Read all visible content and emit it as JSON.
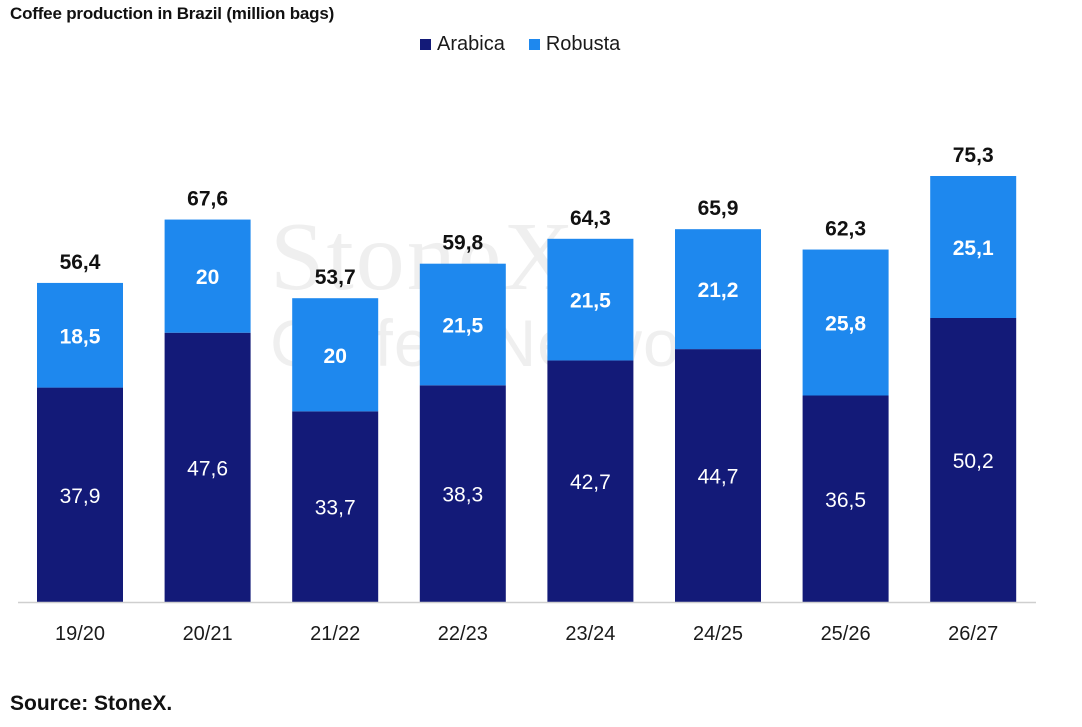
{
  "title": "Coffee production in Brazil (million bags)",
  "source": "Source: StoneX.",
  "watermark": {
    "line1": "StoneX",
    "line2": "Coffee Network"
  },
  "colors": {
    "arabica": "#131a78",
    "robusta": "#1e88ee",
    "axis": "#cfcfcf"
  },
  "chart_data": {
    "type": "bar",
    "stacked": true,
    "title": "Coffee production in Brazil (million bags)",
    "categories": [
      "19/20",
      "20/21",
      "21/22",
      "22/23",
      "23/24",
      "24/25",
      "25/26",
      "26/27"
    ],
    "series": [
      {
        "name": "Arabica",
        "values": [
          37.9,
          47.6,
          33.7,
          38.3,
          42.7,
          44.7,
          36.5,
          50.2
        ],
        "labels": [
          "37,9",
          "47,6",
          "33,7",
          "38,3",
          "42,7",
          "44,7",
          "36,5",
          "50,2"
        ]
      },
      {
        "name": "Robusta",
        "values": [
          18.5,
          20,
          20,
          21.5,
          21.5,
          21.2,
          25.8,
          25.1
        ],
        "labels": [
          "18,5",
          "20",
          "20",
          "21,5",
          "21,5",
          "21,2",
          "25,8",
          "25,1"
        ]
      }
    ],
    "totals": [
      56.4,
      67.6,
      53.7,
      59.8,
      64.3,
      65.9,
      62.3,
      75.3
    ],
    "total_labels": [
      "56,4",
      "67,6",
      "53,7",
      "59,8",
      "64,3",
      "65,9",
      "62,3",
      "75,3"
    ],
    "legend": [
      "Arabica",
      "Robusta"
    ],
    "legend_position": "top-center",
    "ylim": [
      0,
      75.3
    ],
    "grid": false
  }
}
